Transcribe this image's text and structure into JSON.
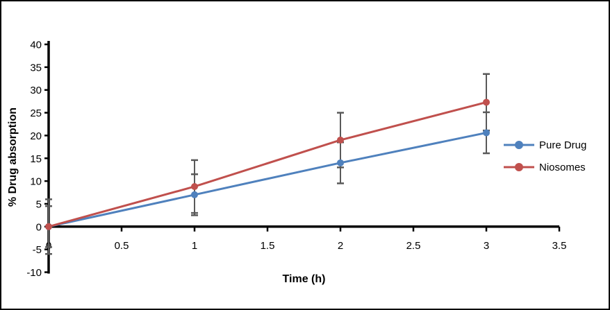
{
  "figure": {
    "background": "#ffffff",
    "border_color": "#000000"
  },
  "chart_data": {
    "type": "line",
    "title": "",
    "xlabel": "Time (h)",
    "ylabel": "% Drug absorption",
    "x": [
      0,
      1,
      2,
      3
    ],
    "series": [
      {
        "name": "Pure Drug",
        "color": "#4F81BD",
        "values": [
          0,
          7,
          14,
          20.6
        ],
        "errors": [
          4.5,
          4.5,
          4.5,
          4.5
        ]
      },
      {
        "name": "Niosomes",
        "color": "#C0504D",
        "values": [
          0,
          8.8,
          19,
          27.3
        ],
        "errors": [
          6,
          5.8,
          6,
          6.2
        ]
      }
    ],
    "xlim": [
      0,
      3.5
    ],
    "ylim": [
      -10,
      40
    ],
    "xticks": [
      0,
      0.5,
      1,
      1.5,
      2,
      2.5,
      3,
      3.5
    ],
    "yticks": [
      40,
      35,
      30,
      25,
      20,
      15,
      10,
      5,
      0,
      -5,
      -10
    ],
    "axis_color": "#000000",
    "error_bar_color": "#595959",
    "tick_label_color": "#000000",
    "tick_label_size": 15,
    "grid": false,
    "legend_position": "right",
    "markers": true
  }
}
